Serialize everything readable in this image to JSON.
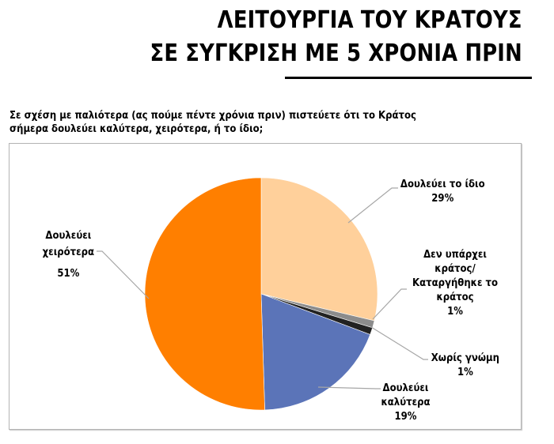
{
  "header": {
    "title_line1": "ΛΕΙΤΟΥΡΓΙΑ ΤΟΥ ΚΡΑΤΟΥΣ",
    "title_line2": "ΣΕ ΣΥΓΚΡΙΣΗ ΜΕ 5 ΧΡΟΝΙΑ ΠΡΙΝ"
  },
  "question": {
    "line1": "Σε σχέση με παλιότερα (ας πούμε πέντε χρόνια πριν) πιστεύετε ότι το Κράτος",
    "line2": "σήμερα δουλεύει καλύτερα, χειρότερα, ή το ίδιο;"
  },
  "labels": {
    "same": {
      "line1": "Δουλεύει το ίδιο",
      "pct": "29%"
    },
    "no_state": {
      "line1": "Δεν υπάρχει",
      "line2": "κράτος/",
      "line3": "Καταργήθηκε το",
      "line4": "κράτος",
      "pct": "1%"
    },
    "no_opinion": {
      "line1": "Χωρίς γνώμη",
      "pct": "1%"
    },
    "better": {
      "line1": "Δουλεύει",
      "line2": "καλύτερα",
      "pct": "19%"
    },
    "worse": {
      "line1": "Δουλεύει",
      "line2": "χειρότερα",
      "pct": "51%"
    }
  },
  "chart_data": {
    "type": "pie",
    "title": "ΛΕΙΤΟΥΡΓΙΑ ΤΟΥ ΚΡΑΤΟΥΣ ΣΕ ΣΥΓΚΡΙΣΗ ΜΕ 5 ΧΡΟΝΙΑ ΠΡΙΝ",
    "subtitle": "Σε σχέση με παλιότερα (ας πούμε πέντε χρόνια πριν) πιστεύετε ότι το Κράτος σήμερα δουλεύει καλύτερα, χειρότερα, ή το ίδιο;",
    "start_angle": "12 o'clock, clockwise",
    "categories": [
      "Δουλεύει το ίδιο",
      "Δεν υπάρχει κράτος/Καταργήθηκε το κράτος",
      "Χωρίς γνώμη",
      "Δουλεύει καλύτερα",
      "Δουλεύει χειρότερα"
    ],
    "values": [
      29,
      1,
      1,
      19,
      51
    ],
    "unit": "%",
    "colors": [
      "#FFD09B",
      "#8C8C8C",
      "#222222",
      "#5B74B8",
      "#FF7F00"
    ],
    "legend": "none (data labels with leader lines)"
  }
}
